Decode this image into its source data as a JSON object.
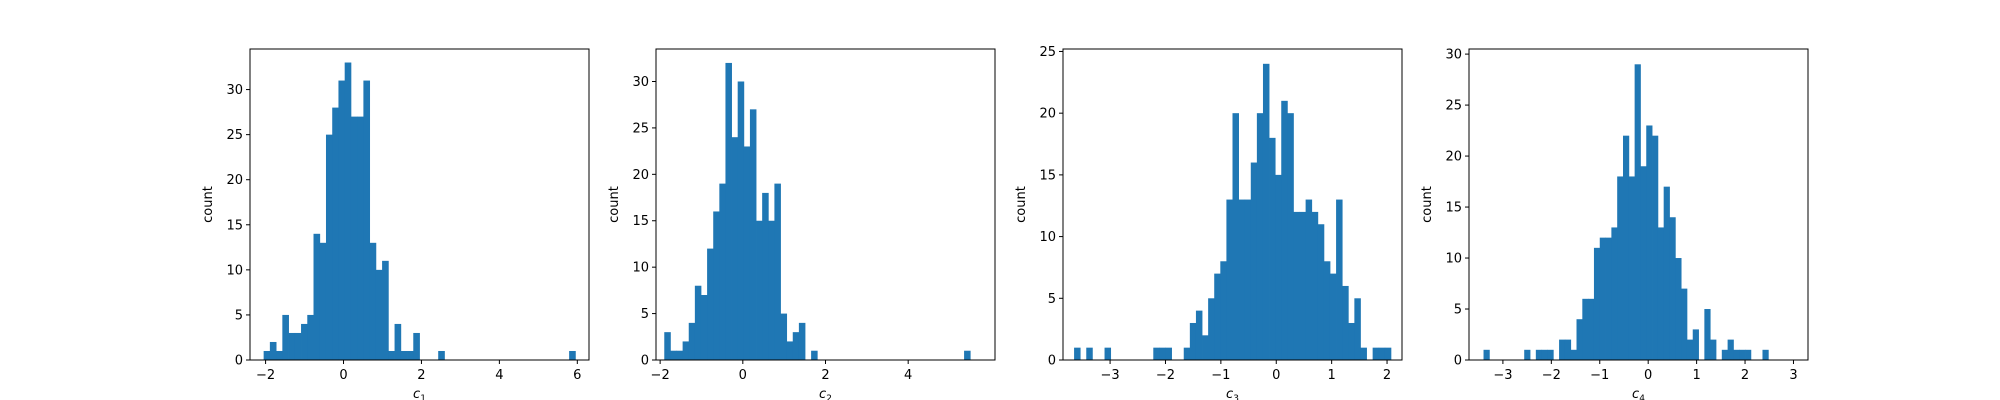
{
  "colors": {
    "bar": "#1f77b4",
    "axes": "#000000",
    "background": "#ffffff"
  },
  "chart_data": [
    {
      "type": "bar",
      "title": "",
      "xlabel": "c",
      "xlabel_subscript": "1",
      "ylabel": "count",
      "xlim": [
        -2.4,
        6.3
      ],
      "ylim": [
        0,
        34.5
      ],
      "xticks": [
        -2,
        0,
        2,
        4,
        6
      ],
      "yticks": [
        0,
        5,
        10,
        15,
        20,
        25,
        30
      ],
      "bin_start": -2.05,
      "bin_width": 0.16,
      "values": [
        1,
        2,
        1,
        5,
        3,
        3,
        4,
        5,
        14,
        13,
        25,
        28,
        31,
        33,
        27,
        27,
        31,
        13,
        10,
        11,
        1,
        4,
        1,
        1,
        3,
        0,
        0,
        0,
        1,
        0,
        0,
        0,
        0,
        0,
        0,
        0,
        0,
        0,
        0,
        0,
        0,
        0,
        0,
        0,
        0,
        0,
        0,
        0,
        0,
        1
      ]
    },
    {
      "type": "bar",
      "title": "",
      "xlabel": "c",
      "xlabel_subscript": "2",
      "ylabel": "count",
      "xlim": [
        -2.1,
        6.1
      ],
      "ylim": [
        0,
        33.5
      ],
      "xticks": [
        -2,
        0,
        2,
        4
      ],
      "yticks": [
        0,
        5,
        10,
        15,
        20,
        25,
        30
      ],
      "bin_start": -1.9,
      "bin_width": 0.148,
      "values": [
        3,
        1,
        1,
        2,
        4,
        8,
        7,
        12,
        16,
        19,
        32,
        24,
        30,
        23,
        27,
        15,
        18,
        15,
        19,
        5,
        2,
        3,
        4,
        0,
        1,
        0,
        0,
        0,
        0,
        0,
        0,
        0,
        0,
        0,
        0,
        0,
        0,
        0,
        0,
        0,
        0,
        0,
        0,
        0,
        0,
        0,
        0,
        0,
        0,
        1
      ]
    },
    {
      "type": "bar",
      "title": "",
      "xlabel": "c",
      "xlabel_subscript": "3",
      "ylabel": "count",
      "xlim": [
        -3.85,
        2.27
      ],
      "ylim": [
        0,
        25.2
      ],
      "xticks": [
        -3,
        -2,
        -1,
        0,
        1,
        2
      ],
      "yticks": [
        0,
        5,
        10,
        15,
        20,
        25
      ],
      "bin_start": -3.65,
      "bin_width": 0.11,
      "values": [
        1,
        0,
        1,
        0,
        0,
        1,
        0,
        0,
        0,
        0,
        0,
        0,
        0,
        1,
        1,
        1,
        0,
        0,
        1,
        3,
        4,
        2,
        5,
        7,
        8,
        13,
        20,
        13,
        13,
        16,
        20,
        24,
        18,
        15,
        21,
        20,
        12,
        12,
        13,
        12,
        11,
        8,
        7,
        13,
        6,
        3,
        5,
        1,
        0,
        1,
        1,
        1
      ]
    },
    {
      "type": "bar",
      "title": "",
      "xlabel": "c",
      "xlabel_subscript": "4",
      "ylabel": "count",
      "xlim": [
        -3.7,
        3.3
      ],
      "ylim": [
        0,
        30.5
      ],
      "xticks": [
        -3,
        -2,
        -1,
        0,
        1,
        2,
        3
      ],
      "yticks": [
        0,
        5,
        10,
        15,
        20,
        25,
        30
      ],
      "bin_start": -3.4,
      "bin_width": 0.12,
      "values": [
        1,
        0,
        0,
        0,
        0,
        0,
        0,
        1,
        0,
        1,
        1,
        1,
        0,
        2,
        2,
        1,
        4,
        6,
        6,
        11,
        12,
        12,
        13,
        18,
        22,
        18,
        29,
        19,
        23,
        22,
        13,
        17,
        14,
        10,
        7,
        2,
        3,
        0,
        5,
        2,
        0,
        1,
        2,
        1,
        1,
        1,
        0,
        0,
        1
      ]
    }
  ]
}
